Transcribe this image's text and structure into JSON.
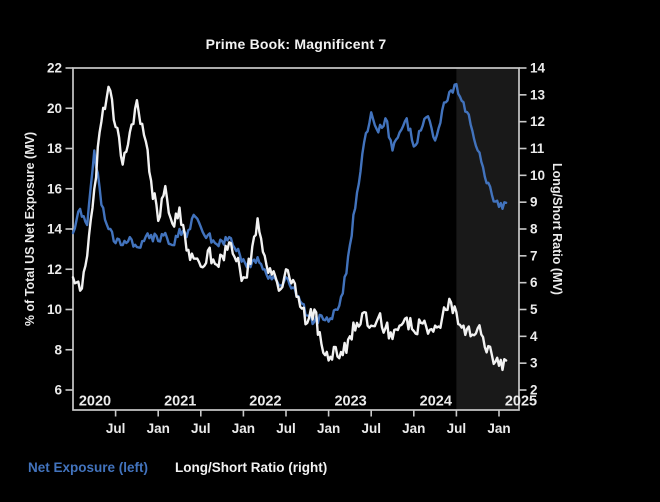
{
  "title": "Prime Book: Magnificent 7",
  "legend": {
    "net_exposure": "Net Exposure (left)",
    "long_short": "Long/Short Ratio (right)"
  },
  "left_axis": {
    "title": "% of Total US Net Exposure (MV)",
    "ticks": [
      22,
      20,
      18,
      16,
      14,
      12,
      10,
      8,
      6
    ],
    "range": [
      6,
      22
    ]
  },
  "right_axis": {
    "title": "Long/Short Ratio (MV)",
    "ticks": [
      14,
      13,
      12,
      11,
      10,
      9,
      8,
      7,
      6,
      5,
      4,
      3,
      2
    ],
    "range": [
      2,
      14
    ]
  },
  "x_axis": {
    "years": [
      "2020",
      "2021",
      "2022",
      "2023",
      "2024",
      "2025"
    ],
    "month_tick_labels": [
      "Jul",
      "Jan",
      "Jul",
      "Jan",
      "Jul",
      "Jan",
      "Jul",
      "Jan",
      "Jul",
      "Jan"
    ]
  },
  "colors": {
    "background": "#000000",
    "net_exposure_line": "#4273bd",
    "long_short_line": "#f2f2f2",
    "axis": "#c9c9c9",
    "tick_text": "#ebebeb",
    "highlight_band": "#191919"
  },
  "chart_data": {
    "type": "line",
    "title": "Prime Book: Magnificent 7",
    "grid": false,
    "legend_position": "bottom-left",
    "left_ylim": [
      6,
      22
    ],
    "right_ylim": [
      2,
      14
    ],
    "x_range": [
      "2020-01",
      "2025-02"
    ],
    "highlight_band": {
      "from": "2024-07",
      "to": "2025-04"
    },
    "x": [
      "2020-01",
      "2020-02",
      "2020-03",
      "2020-04",
      "2020-05",
      "2020-06",
      "2020-07",
      "2020-08",
      "2020-09",
      "2020-10",
      "2020-11",
      "2020-12",
      "2021-01",
      "2021-02",
      "2021-03",
      "2021-04",
      "2021-05",
      "2021-06",
      "2021-07",
      "2021-08",
      "2021-09",
      "2021-10",
      "2021-11",
      "2021-12",
      "2022-01",
      "2022-02",
      "2022-03",
      "2022-04",
      "2022-05",
      "2022-06",
      "2022-07",
      "2022-08",
      "2022-09",
      "2022-10",
      "2022-11",
      "2022-12",
      "2023-01",
      "2023-02",
      "2023-03",
      "2023-04",
      "2023-05",
      "2023-06",
      "2023-07",
      "2023-08",
      "2023-09",
      "2023-10",
      "2023-11",
      "2023-12",
      "2024-01",
      "2024-02",
      "2024-03",
      "2024-04",
      "2024-05",
      "2024-06",
      "2024-07",
      "2024-08",
      "2024-09",
      "2024-10",
      "2024-11",
      "2024-12",
      "2025-01",
      "2025-02"
    ],
    "series": [
      {
        "name": "Net Exposure (left)",
        "axis": "left",
        "unit": "% of Total US Net Exposure (MV)",
        "color": "#4273bd",
        "values": [
          13.8,
          15.0,
          14.2,
          17.9,
          15.2,
          14.0,
          13.3,
          13.2,
          13.6,
          13.1,
          13.4,
          13.7,
          13.4,
          13.8,
          13.2,
          14.0,
          13.6,
          14.7,
          14.1,
          13.7,
          13.3,
          13.4,
          13.6,
          12.9,
          12.5,
          12.1,
          12.6,
          12.0,
          11.5,
          11.2,
          11.6,
          11.1,
          10.4,
          9.7,
          9.4,
          9.7,
          9.4,
          10.0,
          10.8,
          13.2,
          15.8,
          18.3,
          19.8,
          18.8,
          19.5,
          17.9,
          18.8,
          19.5,
          18.1,
          18.9,
          19.6,
          18.4,
          19.9,
          20.8,
          21.2,
          20.3,
          19.2,
          17.9,
          16.6,
          15.7,
          15.1,
          15.3
        ]
      },
      {
        "name": "Long/Short Ratio (right)",
        "axis": "right",
        "unit": "Long/Short Ratio (MV)",
        "color": "#f2f2f2",
        "values": [
          6.2,
          5.7,
          7.0,
          9.5,
          12.0,
          13.3,
          11.8,
          10.4,
          11.6,
          12.8,
          11.5,
          9.8,
          8.3,
          9.6,
          8.2,
          8.8,
          7.2,
          6.9,
          6.6,
          7.2,
          6.7,
          7.0,
          7.5,
          6.8,
          6.2,
          6.7,
          8.4,
          7.0,
          6.3,
          5.7,
          6.5,
          6.1,
          5.1,
          4.5,
          5.0,
          3.7,
          3.1,
          3.6,
          3.3,
          4.0,
          4.5,
          4.9,
          4.4,
          4.7,
          4.3,
          3.9,
          4.4,
          4.7,
          4.2,
          4.5,
          4.1,
          4.4,
          4.7,
          5.4,
          4.9,
          4.4,
          4.0,
          4.3,
          3.6,
          3.3,
          2.9,
          3.1
        ]
      }
    ]
  }
}
